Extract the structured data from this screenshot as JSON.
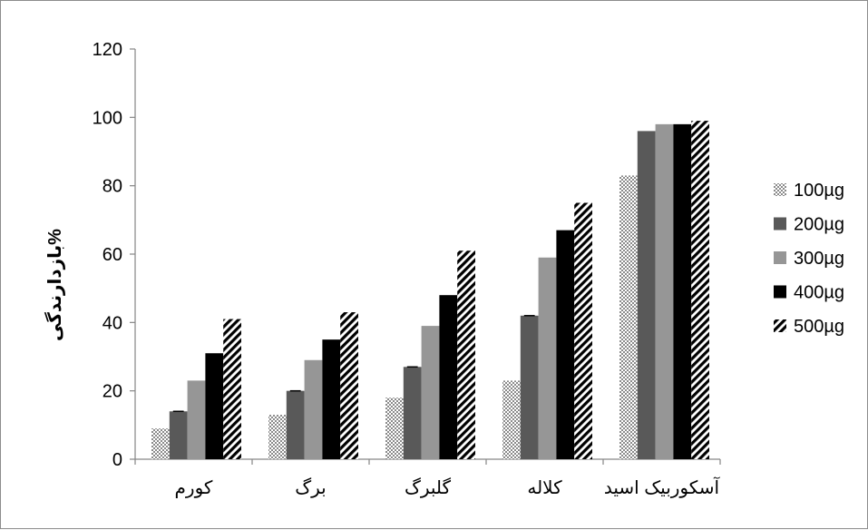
{
  "chart_data": {
    "type": "bar",
    "categories": [
      "کورم",
      "برگ",
      "گلبرگ",
      "کلاله",
      "آسکوربیک اسید"
    ],
    "series": [
      {
        "name": "100µg",
        "values": [
          9,
          13,
          18,
          23,
          83
        ],
        "pattern": "checker-light"
      },
      {
        "name": "200µg",
        "values": [
          14,
          20,
          27,
          42,
          96
        ],
        "pattern": "solid-dark-gray"
      },
      {
        "name": "300µg",
        "values": [
          23,
          29,
          39,
          59,
          98
        ],
        "pattern": "solid-light-gray"
      },
      {
        "name": "400µg",
        "values": [
          31,
          35,
          48,
          67,
          98
        ],
        "pattern": "solid-black"
      },
      {
        "name": "500µg",
        "values": [
          41,
          43,
          61,
          75,
          99
        ],
        "pattern": "diagonal-stripes"
      }
    ],
    "ylabel": "%بازدارندگی",
    "xlabel": "",
    "ylim": [
      0,
      120
    ],
    "yticks": [
      "0",
      "20",
      "40",
      "60",
      "80",
      "100",
      "120"
    ],
    "grid": false,
    "legend": "right",
    "colors": {
      "dark_gray": "#595959",
      "light_gray": "#969696",
      "black": "#000000"
    }
  }
}
